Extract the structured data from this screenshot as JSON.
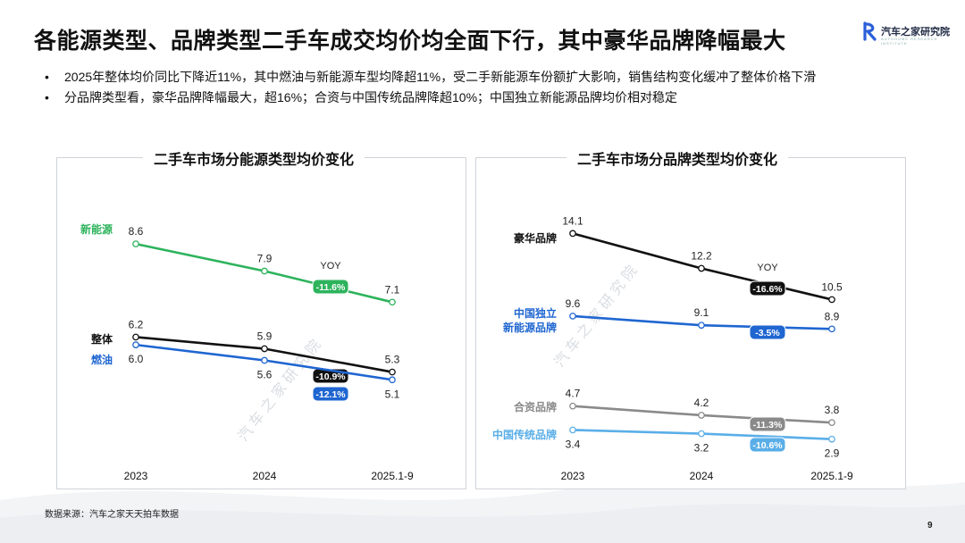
{
  "header": {
    "title": "各能源类型、品牌类型二手车成交均价均全面下行，其中豪华品牌降幅最大",
    "logo_text": "汽车之家研究院",
    "logo_subtext": "AUTOHOME RESEARCH INSTITUTE"
  },
  "bullets": [
    {
      "marker": "•",
      "text": "2025年整体均价同比下降近11%，其中燃油与新能源车型均降超11%，受二手新能源车份额扩大影响，销售结构变化缓冲了整体价格下滑"
    },
    {
      "marker": "•",
      "text": "分品牌类型看，豪华品牌降幅最大，超16%；合资与中国传统品牌降超10%；中国独立新能源品牌均价相对稳定"
    }
  ],
  "colors": {
    "green": "#2db35c",
    "black": "#111111",
    "blue": "#1f66d1",
    "gray": "#8a8a8a",
    "lightblue": "#5aaee8"
  },
  "watermark": "汽 车 之 家 研 究 院",
  "chart_data": [
    {
      "type": "line",
      "title": "二手车市场分能源类型均价变化",
      "categories": [
        "2023",
        "2024",
        "2025.1-9"
      ],
      "ylim": [
        4.6,
        9.2
      ],
      "yoy_label": "YOY",
      "series": [
        {
          "name": "新能源",
          "values": [
            8.6,
            7.9,
            7.1
          ],
          "labels": [
            "8.6",
            "7.9",
            "7.1"
          ],
          "yoy": "-11.6%",
          "color_key": "green"
        },
        {
          "name": "整体",
          "values": [
            6.2,
            5.9,
            5.3
          ],
          "labels": [
            "6.2",
            "5.9",
            "5.3"
          ],
          "yoy": "-10.9%",
          "color_key": "black"
        },
        {
          "name": "燃油",
          "values": [
            6.0,
            5.6,
            5.1
          ],
          "labels": [
            "6.0",
            "5.6",
            "5.1"
          ],
          "yoy": "-12.1%",
          "color_key": "blue"
        }
      ]
    },
    {
      "type": "line",
      "title": "二手车市场分品牌类型均价变化",
      "categories": [
        "2023",
        "2024",
        "2025.1-9"
      ],
      "ylim": [
        2.4,
        14.8
      ],
      "yoy_label": "YOY",
      "series": [
        {
          "name": "豪华品牌",
          "values": [
            14.1,
            12.2,
            10.5
          ],
          "labels": [
            "14.1",
            "12.2",
            "10.5"
          ],
          "yoy": "-16.6%",
          "color_key": "black"
        },
        {
          "name": "中国独立\n新能源品牌",
          "values": [
            9.6,
            9.1,
            8.9
          ],
          "labels": [
            "9.6",
            "9.1",
            "8.9"
          ],
          "yoy": "-3.5%",
          "color_key": "blue"
        },
        {
          "name": "合资品牌",
          "values": [
            4.7,
            4.2,
            3.8
          ],
          "labels": [
            "4.7",
            "4.2",
            "3.8"
          ],
          "yoy": "-11.3%",
          "color_key": "gray"
        },
        {
          "name": "中国传统品牌",
          "values": [
            3.4,
            3.2,
            2.9
          ],
          "labels": [
            "3.4",
            "3.2",
            "2.9"
          ],
          "yoy": "-10.6%",
          "color_key": "lightblue"
        }
      ]
    }
  ],
  "footer": {
    "source": "数据来源：汽车之家天天拍车数据",
    "page_number": "9"
  }
}
